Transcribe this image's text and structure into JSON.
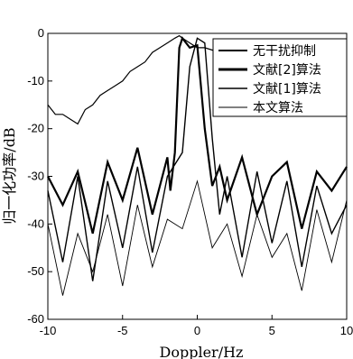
{
  "chart_data": {
    "type": "line",
    "xlabel": "Doppler/Hz",
    "ylabel": "归一化功率/dB",
    "xlim": [
      -10,
      10
    ],
    "ylim": [
      -60,
      0
    ],
    "xticks": [
      -10,
      -5,
      0,
      5,
      10
    ],
    "yticks": [
      0,
      -10,
      -20,
      -30,
      -40,
      -50,
      -60
    ],
    "legend_position": "top-right",
    "series": [
      {
        "name": "无干扰抑制",
        "color": "#000000",
        "x": [
          -10,
          -9.5,
          -9,
          -8.5,
          -8,
          -7.5,
          -7,
          -6.5,
          -6,
          -5.5,
          -5,
          -4.5,
          -4,
          -3.5,
          -3,
          -2.5,
          -2,
          -1.5,
          -1.2,
          -1,
          -0.5,
          0,
          0.5,
          1,
          1.5,
          2
        ],
        "y": [
          -15,
          -17,
          -17,
          -18,
          -19,
          -16,
          -15,
          -13,
          -12,
          -11,
          -10,
          -8,
          -7,
          -6,
          -4,
          -3,
          -2,
          -1,
          -0.5,
          -1,
          -2,
          -3,
          -3,
          -3.5,
          -4,
          -4
        ]
      },
      {
        "name": "文献[2]算法",
        "color": "#000000",
        "x": [
          -10,
          -9,
          -8,
          -7,
          -6,
          -5,
          -4,
          -3,
          -2,
          -1.8,
          -1.5,
          -1.2,
          -1,
          -0.5,
          0,
          0.5,
          1,
          1.5,
          2,
          3,
          4,
          5,
          6,
          7,
          8,
          9,
          10
        ],
        "y": [
          -30,
          -36,
          -29,
          -42,
          -27,
          -35,
          -24,
          -38,
          -26,
          -33,
          -25,
          -3,
          -1,
          -3,
          -2.5,
          -20,
          -32,
          -28,
          -35,
          -26,
          -38,
          -30,
          -27,
          -41,
          -29,
          -33,
          -28
        ]
      },
      {
        "name": "文献[1]算法",
        "color": "#000000",
        "x": [
          -10,
          -9,
          -8,
          -7,
          -6,
          -5,
          -4,
          -3,
          -2,
          -1,
          -0.5,
          0,
          0.5,
          1,
          1.5,
          2,
          3,
          4,
          5,
          6,
          7,
          8,
          9,
          10
        ],
        "y": [
          -33,
          -48,
          -30,
          -52,
          -31,
          -45,
          -28,
          -46,
          -30,
          -25,
          -7,
          -1,
          -2,
          -22,
          -38,
          -30,
          -47,
          -29,
          -44,
          -31,
          -49,
          -32,
          -42,
          -36
        ]
      },
      {
        "name": "本文算法",
        "color": "#000000",
        "x": [
          -10,
          -9,
          -8,
          -7,
          -6,
          -5,
          -4,
          -3,
          -2,
          -1,
          0,
          1,
          2,
          3,
          4,
          5,
          6,
          7,
          8,
          9,
          10
        ],
        "y": [
          -40,
          -55,
          -42,
          -50,
          -38,
          -53,
          -36,
          -49,
          -39,
          -41,
          -31,
          -45,
          -40,
          -51,
          -38,
          -47,
          -42,
          -54,
          -37,
          -48,
          -35
        ]
      }
    ]
  }
}
